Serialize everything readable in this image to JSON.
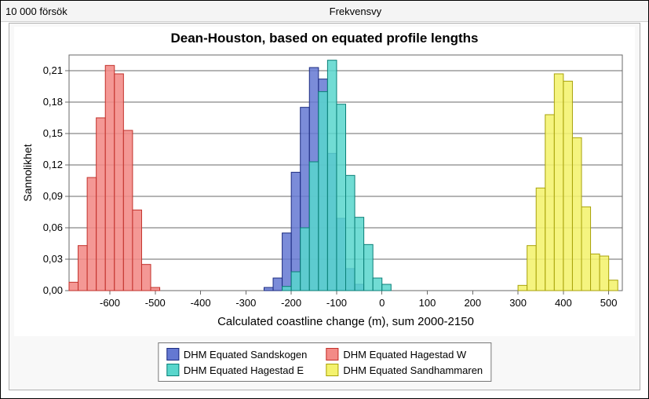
{
  "topbar": {
    "left": "10 000 försök",
    "center": "Frekvensvy"
  },
  "chart": {
    "title": "Dean-Houston, based on equated profile lengths",
    "xlabel": "Calculated coastline change (m), sum 2000-2150",
    "ylabel": "Sannolikhet",
    "font_family": "Arial",
    "title_fontsize": 17,
    "axis_label_fontsize": 15,
    "tick_fontsize": 13,
    "background_color": "#ffffff",
    "grid_color": "#6a6a6a",
    "border_color": "#6a6a6a",
    "xlim": [
      -690,
      530
    ],
    "ylim": [
      0,
      0.225
    ],
    "xticks": [
      -600,
      -500,
      -400,
      -300,
      -200,
      -100,
      0,
      100,
      200,
      300,
      400,
      500
    ],
    "yticks": [
      0.0,
      0.03,
      0.06,
      0.09,
      0.12,
      0.15,
      0.18,
      0.21
    ],
    "ytick_labels": [
      "0,00",
      "0,03",
      "0,06",
      "0,09",
      "0,12",
      "0,15",
      "0,18",
      "0,21"
    ],
    "bin_width": 20,
    "panel_bg": "#f8f8f8",
    "series": [
      {
        "id": "sandskogen",
        "name": "DHM Equated Sandskogen",
        "fill": "#6478d2",
        "fill_opacity": 0.85,
        "stroke": "#1a2a80",
        "data": [
          {
            "x": -250,
            "y": 0.003
          },
          {
            "x": -230,
            "y": 0.012
          },
          {
            "x": -210,
            "y": 0.055
          },
          {
            "x": -190,
            "y": 0.113
          },
          {
            "x": -170,
            "y": 0.175
          },
          {
            "x": -150,
            "y": 0.213
          },
          {
            "x": -130,
            "y": 0.202
          },
          {
            "x": -110,
            "y": 0.131
          },
          {
            "x": -90,
            "y": 0.069
          },
          {
            "x": -70,
            "y": 0.021
          },
          {
            "x": -50,
            "y": 0.006
          }
        ]
      },
      {
        "id": "hagestad_e",
        "name": "DHM Equated Hagestad E",
        "fill": "#58d6cc",
        "fill_opacity": 0.85,
        "stroke": "#0a7f77",
        "data": [
          {
            "x": -210,
            "y": 0.004
          },
          {
            "x": -190,
            "y": 0.018
          },
          {
            "x": -170,
            "y": 0.06
          },
          {
            "x": -150,
            "y": 0.123
          },
          {
            "x": -130,
            "y": 0.19
          },
          {
            "x": -110,
            "y": 0.22
          },
          {
            "x": -90,
            "y": 0.178
          },
          {
            "x": -70,
            "y": 0.11
          },
          {
            "x": -50,
            "y": 0.07
          },
          {
            "x": -30,
            "y": 0.044
          },
          {
            "x": -10,
            "y": 0.012
          },
          {
            "x": 10,
            "y": 0.006
          }
        ]
      },
      {
        "id": "hagestad_w",
        "name": "DHM Equated Hagestad W",
        "fill": "#f38a86",
        "fill_opacity": 0.88,
        "stroke": "#c2302a",
        "data": [
          {
            "x": -680,
            "y": 0.008
          },
          {
            "x": -660,
            "y": 0.043
          },
          {
            "x": -640,
            "y": 0.108
          },
          {
            "x": -620,
            "y": 0.165
          },
          {
            "x": -600,
            "y": 0.215
          },
          {
            "x": -580,
            "y": 0.207
          },
          {
            "x": -560,
            "y": 0.153
          },
          {
            "x": -540,
            "y": 0.077
          },
          {
            "x": -520,
            "y": 0.025
          },
          {
            "x": -500,
            "y": 0.003
          }
        ]
      },
      {
        "id": "sandhammaren",
        "name": "DHM Equated Sandhammaren",
        "fill": "#f4f26d",
        "fill_opacity": 0.88,
        "stroke": "#a8a20a",
        "data": [
          {
            "x": 310,
            "y": 0.005
          },
          {
            "x": 330,
            "y": 0.043
          },
          {
            "x": 350,
            "y": 0.098
          },
          {
            "x": 370,
            "y": 0.168
          },
          {
            "x": 390,
            "y": 0.207
          },
          {
            "x": 410,
            "y": 0.2
          },
          {
            "x": 430,
            "y": 0.146
          },
          {
            "x": 450,
            "y": 0.08
          },
          {
            "x": 470,
            "y": 0.035
          },
          {
            "x": 490,
            "y": 0.033
          },
          {
            "x": 510,
            "y": 0.01
          }
        ]
      }
    ],
    "legend_order": [
      "sandskogen",
      "hagestad_w",
      "hagestad_e",
      "sandhammaren"
    ]
  }
}
